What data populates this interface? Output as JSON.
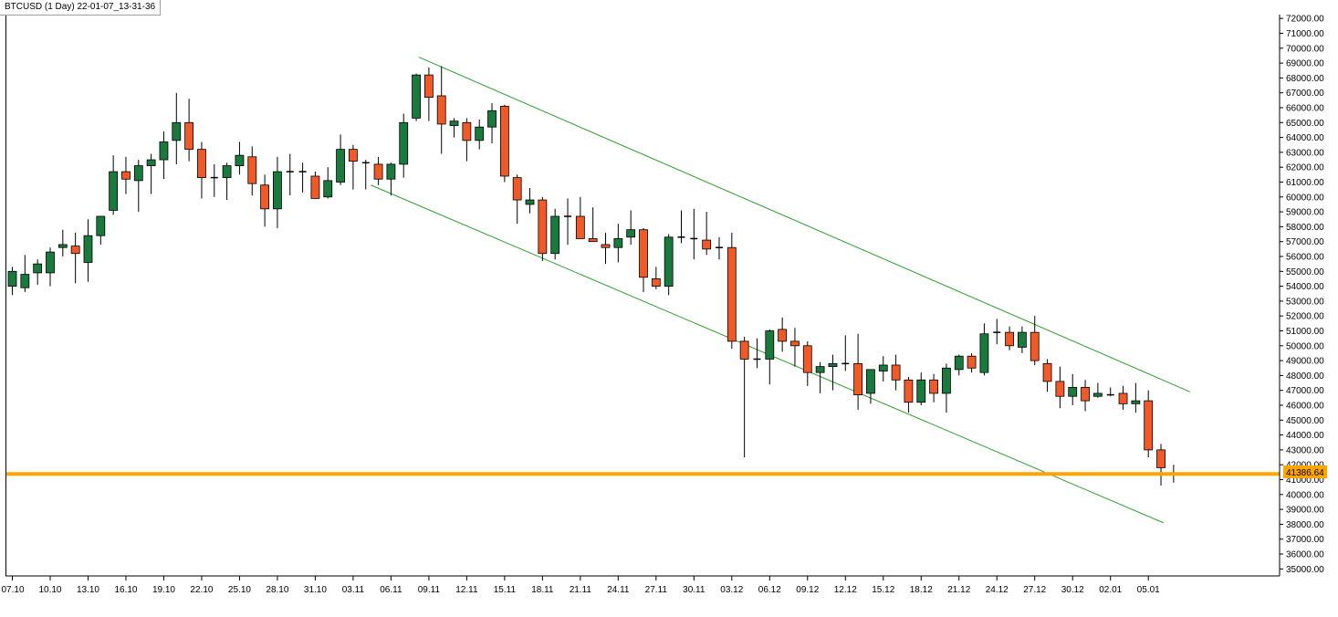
{
  "window": {
    "title": "BTCUSD (1 Day) 22-01-07_13-31-36"
  },
  "colors": {
    "bull": "#1a7a3e",
    "bear": "#f05a28",
    "wick": "#000000",
    "trendline": "#2f9e2f",
    "price_line": "#ffa500",
    "axis": "#000000",
    "background": "#ffffff"
  },
  "chart_data": {
    "type": "candlestick",
    "symbol": "BTCUSD",
    "timeframe": "1 Day",
    "current_price_label": "41386.64",
    "current_price": 41386.64,
    "ylim": [
      34500,
      72500
    ],
    "y_ticks": [
      "35000.00",
      "36000.00",
      "37000.00",
      "38000.00",
      "39000.00",
      "40000.00",
      "41000.00",
      "42000.00",
      "43000.00",
      "44000.00",
      "45000.00",
      "46000.00",
      "47000.00",
      "48000.00",
      "49000.00",
      "50000.00",
      "51000.00",
      "52000.00",
      "53000.00",
      "54000.00",
      "55000.00",
      "56000.00",
      "57000.00",
      "58000.00",
      "59000.00",
      "60000.00",
      "61000.00",
      "62000.00",
      "63000.00",
      "64000.00",
      "65000.00",
      "66000.00",
      "67000.00",
      "68000.00",
      "69000.00",
      "70000.00",
      "71000.00",
      "72000.00"
    ],
    "x_ticks": [
      {
        "index": 0,
        "label": "07.10"
      },
      {
        "index": 3,
        "label": "10.10"
      },
      {
        "index": 6,
        "label": "13.10"
      },
      {
        "index": 9,
        "label": "16.10"
      },
      {
        "index": 12,
        "label": "19.10"
      },
      {
        "index": 15,
        "label": "22.10"
      },
      {
        "index": 18,
        "label": "25.10"
      },
      {
        "index": 21,
        "label": "28.10"
      },
      {
        "index": 24,
        "label": "31.10"
      },
      {
        "index": 27,
        "label": "03.11"
      },
      {
        "index": 30,
        "label": "06.11"
      },
      {
        "index": 33,
        "label": "09.11"
      },
      {
        "index": 36,
        "label": "12.11"
      },
      {
        "index": 39,
        "label": "15.11"
      },
      {
        "index": 42,
        "label": "18.11"
      },
      {
        "index": 45,
        "label": "21.11"
      },
      {
        "index": 48,
        "label": "24.11"
      },
      {
        "index": 51,
        "label": "27.11"
      },
      {
        "index": 54,
        "label": "30.11"
      },
      {
        "index": 57,
        "label": "03.12"
      },
      {
        "index": 60,
        "label": "06.12"
      },
      {
        "index": 63,
        "label": "09.12"
      },
      {
        "index": 66,
        "label": "12.12"
      },
      {
        "index": 69,
        "label": "15.12"
      },
      {
        "index": 72,
        "label": "18.12"
      },
      {
        "index": 75,
        "label": "21.12"
      },
      {
        "index": 78,
        "label": "24.12"
      },
      {
        "index": 81,
        "label": "27.12"
      },
      {
        "index": 84,
        "label": "30.12"
      },
      {
        "index": 87,
        "label": "02.01"
      },
      {
        "index": 90,
        "label": "05.01"
      }
    ],
    "candles": [
      {
        "o": 54000,
        "h": 55300,
        "l": 53400,
        "c": 55000
      },
      {
        "o": 53900,
        "h": 56100,
        "l": 53600,
        "c": 54800
      },
      {
        "o": 54900,
        "h": 55800,
        "l": 54100,
        "c": 55500
      },
      {
        "o": 54900,
        "h": 56600,
        "l": 54000,
        "c": 56300
      },
      {
        "o": 56600,
        "h": 57800,
        "l": 56000,
        "c": 56800
      },
      {
        "o": 56700,
        "h": 57600,
        "l": 54200,
        "c": 56200
      },
      {
        "o": 55600,
        "h": 58500,
        "l": 54300,
        "c": 57400
      },
      {
        "o": 57400,
        "h": 58700,
        "l": 56800,
        "c": 58700
      },
      {
        "o": 59100,
        "h": 62800,
        "l": 58800,
        "c": 61700
      },
      {
        "o": 61700,
        "h": 62700,
        "l": 60200,
        "c": 61200
      },
      {
        "o": 61100,
        "h": 62500,
        "l": 59000,
        "c": 62100
      },
      {
        "o": 62100,
        "h": 62900,
        "l": 60200,
        "c": 62500
      },
      {
        "o": 62500,
        "h": 64400,
        "l": 61200,
        "c": 63700
      },
      {
        "o": 63800,
        "h": 67000,
        "l": 62200,
        "c": 65000
      },
      {
        "o": 65000,
        "h": 66600,
        "l": 62400,
        "c": 63200
      },
      {
        "o": 63200,
        "h": 63700,
        "l": 59900,
        "c": 61300
      },
      {
        "o": 61300,
        "h": 62200,
        "l": 60000,
        "c": 61300
      },
      {
        "o": 61300,
        "h": 62300,
        "l": 59800,
        "c": 62100
      },
      {
        "o": 62100,
        "h": 63700,
        "l": 61500,
        "c": 62800
      },
      {
        "o": 62700,
        "h": 63400,
        "l": 60100,
        "c": 60900
      },
      {
        "o": 60800,
        "h": 61500,
        "l": 58000,
        "c": 59200
      },
      {
        "o": 59200,
        "h": 62700,
        "l": 57900,
        "c": 61700
      },
      {
        "o": 61700,
        "h": 62900,
        "l": 60100,
        "c": 61700
      },
      {
        "o": 61700,
        "h": 62300,
        "l": 60300,
        "c": 61700
      },
      {
        "o": 61400,
        "h": 61700,
        "l": 59900,
        "c": 59900
      },
      {
        "o": 60000,
        "h": 62000,
        "l": 59900,
        "c": 61100
      },
      {
        "o": 61000,
        "h": 64200,
        "l": 60800,
        "c": 63200
      },
      {
        "o": 63200,
        "h": 63500,
        "l": 60500,
        "c": 62400
      },
      {
        "o": 62400,
        "h": 62500,
        "l": 60500,
        "c": 62300
      },
      {
        "o": 62200,
        "h": 62700,
        "l": 60800,
        "c": 61200
      },
      {
        "o": 61200,
        "h": 62300,
        "l": 60100,
        "c": 62200
      },
      {
        "o": 62200,
        "h": 65600,
        "l": 61300,
        "c": 65000
      },
      {
        "o": 65300,
        "h": 68300,
        "l": 65100,
        "c": 68200
      },
      {
        "o": 68200,
        "h": 68700,
        "l": 65100,
        "c": 66700
      },
      {
        "o": 66800,
        "h": 68800,
        "l": 62900,
        "c": 64900
      },
      {
        "o": 64800,
        "h": 65300,
        "l": 64000,
        "c": 65100
      },
      {
        "o": 65000,
        "h": 65300,
        "l": 62400,
        "c": 63800
      },
      {
        "o": 63800,
        "h": 65200,
        "l": 63200,
        "c": 64700
      },
      {
        "o": 64700,
        "h": 66300,
        "l": 63600,
        "c": 65800
      },
      {
        "o": 66100,
        "h": 66200,
        "l": 61000,
        "c": 61400
      },
      {
        "o": 61300,
        "h": 61500,
        "l": 58200,
        "c": 59800
      },
      {
        "o": 59500,
        "h": 60600,
        "l": 58900,
        "c": 59800
      },
      {
        "o": 59800,
        "h": 60000,
        "l": 55700,
        "c": 56200
      },
      {
        "o": 56200,
        "h": 59200,
        "l": 55800,
        "c": 58700
      },
      {
        "o": 58700,
        "h": 59900,
        "l": 56800,
        "c": 58700
      },
      {
        "o": 58700,
        "h": 60000,
        "l": 57200,
        "c": 57200
      },
      {
        "o": 57200,
        "h": 59300,
        "l": 57000,
        "c": 57000
      },
      {
        "o": 56800,
        "h": 57600,
        "l": 55500,
        "c": 56600
      },
      {
        "o": 56600,
        "h": 58200,
        "l": 55600,
        "c": 57200
      },
      {
        "o": 57300,
        "h": 59100,
        "l": 56800,
        "c": 57800
      },
      {
        "o": 57800,
        "h": 57900,
        "l": 53600,
        "c": 54600
      },
      {
        "o": 54500,
        "h": 55300,
        "l": 53800,
        "c": 54000
      },
      {
        "o": 54000,
        "h": 57500,
        "l": 53400,
        "c": 57300
      },
      {
        "o": 57300,
        "h": 59100,
        "l": 56900,
        "c": 57300
      },
      {
        "o": 57300,
        "h": 59200,
        "l": 55800,
        "c": 57200
      },
      {
        "o": 57100,
        "h": 59000,
        "l": 56100,
        "c": 56500
      },
      {
        "o": 56700,
        "h": 57300,
        "l": 55800,
        "c": 56600
      },
      {
        "o": 56600,
        "h": 57600,
        "l": 49800,
        "c": 50300
      },
      {
        "o": 50300,
        "h": 50600,
        "l": 42500,
        "c": 49100
      },
      {
        "o": 49100,
        "h": 50500,
        "l": 48500,
        "c": 49100
      },
      {
        "o": 49100,
        "h": 51100,
        "l": 47400,
        "c": 51000
      },
      {
        "o": 51100,
        "h": 51900,
        "l": 49600,
        "c": 50300
      },
      {
        "o": 50300,
        "h": 51200,
        "l": 48600,
        "c": 50000
      },
      {
        "o": 50000,
        "h": 50300,
        "l": 47300,
        "c": 48200
      },
      {
        "o": 48200,
        "h": 48900,
        "l": 46800,
        "c": 48600
      },
      {
        "o": 48600,
        "h": 49400,
        "l": 47000,
        "c": 48800
      },
      {
        "o": 48800,
        "h": 50700,
        "l": 48300,
        "c": 48800
      },
      {
        "o": 48800,
        "h": 50800,
        "l": 45700,
        "c": 46700
      },
      {
        "o": 46800,
        "h": 48400,
        "l": 46100,
        "c": 48400
      },
      {
        "o": 48300,
        "h": 49300,
        "l": 47600,
        "c": 48700
      },
      {
        "o": 48700,
        "h": 49400,
        "l": 47000,
        "c": 47700
      },
      {
        "o": 47700,
        "h": 47900,
        "l": 45500,
        "c": 46200
      },
      {
        "o": 46200,
        "h": 48200,
        "l": 46000,
        "c": 47700
      },
      {
        "o": 47700,
        "h": 48100,
        "l": 46200,
        "c": 46800
      },
      {
        "o": 46800,
        "h": 48800,
        "l": 45500,
        "c": 48500
      },
      {
        "o": 48400,
        "h": 49400,
        "l": 48000,
        "c": 49300
      },
      {
        "o": 49300,
        "h": 49500,
        "l": 48200,
        "c": 48500
      },
      {
        "o": 48200,
        "h": 51500,
        "l": 48000,
        "c": 50800
      },
      {
        "o": 50800,
        "h": 51800,
        "l": 50100,
        "c": 50900
      },
      {
        "o": 50900,
        "h": 51300,
        "l": 49700,
        "c": 50000
      },
      {
        "o": 49900,
        "h": 51300,
        "l": 49500,
        "c": 50900
      },
      {
        "o": 50900,
        "h": 52000,
        "l": 48700,
        "c": 49000
      },
      {
        "o": 48800,
        "h": 49100,
        "l": 46900,
        "c": 47600
      },
      {
        "o": 47600,
        "h": 48600,
        "l": 45800,
        "c": 46600
      },
      {
        "o": 46600,
        "h": 48100,
        "l": 46000,
        "c": 47200
      },
      {
        "o": 47200,
        "h": 47700,
        "l": 45600,
        "c": 46300
      },
      {
        "o": 46600,
        "h": 47500,
        "l": 46500,
        "c": 46800
      },
      {
        "o": 46800,
        "h": 47200,
        "l": 46600,
        "c": 46700
      },
      {
        "o": 46800,
        "h": 47300,
        "l": 45700,
        "c": 46100
      },
      {
        "o": 46100,
        "h": 47500,
        "l": 45500,
        "c": 46300
      },
      {
        "o": 46300,
        "h": 47000,
        "l": 42500,
        "c": 43000
      },
      {
        "o": 43000,
        "h": 43400,
        "l": 40600,
        "c": 41800
      },
      {
        "o": 41500,
        "h": 42000,
        "l": 40800,
        "c": 41400
      }
    ],
    "trendlines": [
      {
        "name": "upper-channel",
        "from": {
          "index": 32.2,
          "price": 69400
        },
        "to": {
          "index": 93.3,
          "price": 46900
        }
      },
      {
        "name": "lower-channel",
        "from": {
          "index": 28.4,
          "price": 60800
        },
        "to": {
          "index": 91.2,
          "price": 38100
        }
      }
    ],
    "horizontal_line": {
      "price": 41386.64
    }
  }
}
